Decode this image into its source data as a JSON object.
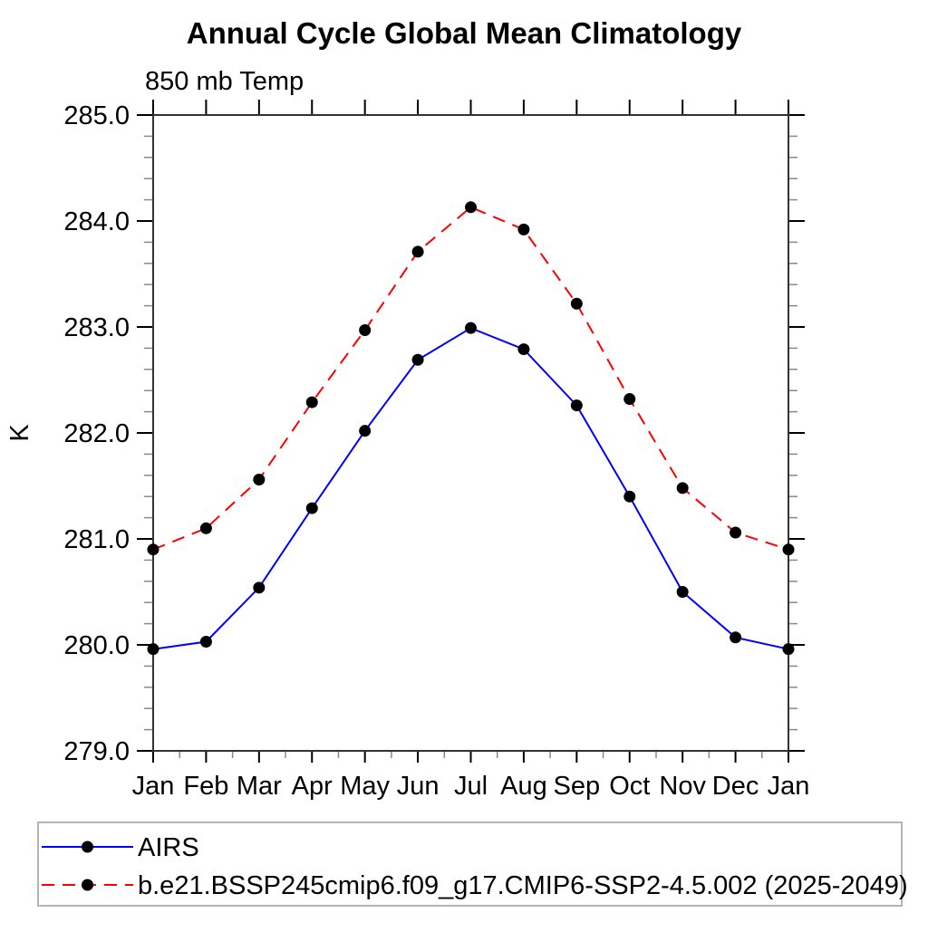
{
  "page": {
    "background": "#ffffff"
  },
  "chart_data": {
    "type": "line",
    "title": "Annual Cycle Global Mean Climatology",
    "subtitle": "850 mb Temp",
    "ylabel": "K",
    "categories": [
      "Jan",
      "Feb",
      "Mar",
      "Apr",
      "May",
      "Jun",
      "Jul",
      "Aug",
      "Sep",
      "Oct",
      "Nov",
      "Dec",
      "Jan"
    ],
    "ylim": [
      279.0,
      285.0
    ],
    "y_major_ticks": [
      285.0,
      284.0,
      283.0,
      282.0,
      281.0,
      280.0,
      279.0
    ],
    "y_tick_labels": [
      "285.0",
      "284.0",
      "283.0",
      "282.0",
      "281.0",
      "280.0",
      "279.0"
    ],
    "y_minor_step": 0.2,
    "x_minor_ticks": "half-month",
    "grid": false,
    "legend_position": "bottom-left-box",
    "colors": {
      "axis": "#333333",
      "major_tick": "#000000",
      "minor_tick": "#888888",
      "legend_border": "#b4b4b4",
      "text": "#000000"
    },
    "series": [
      {
        "name": "AIRS",
        "color": "#0000ff",
        "line_style": "solid",
        "marker": "filled-circle",
        "marker_color": "#000000",
        "values": [
          279.96,
          280.03,
          280.54,
          281.29,
          282.02,
          282.69,
          282.99,
          282.79,
          282.26,
          281.4,
          280.5,
          280.07,
          279.96
        ]
      },
      {
        "name": "b.e21.BSSP245cmip6.f09_g17.CMIP6-SSP2-4.5.002 (2025-2049)",
        "color": "#ff0000",
        "line_style": "dashed",
        "marker": "filled-circle",
        "marker_color": "#000000",
        "values": [
          280.9,
          281.1,
          281.56,
          282.29,
          282.97,
          283.71,
          284.13,
          283.92,
          283.22,
          282.32,
          281.48,
          281.06,
          280.9
        ]
      }
    ]
  }
}
